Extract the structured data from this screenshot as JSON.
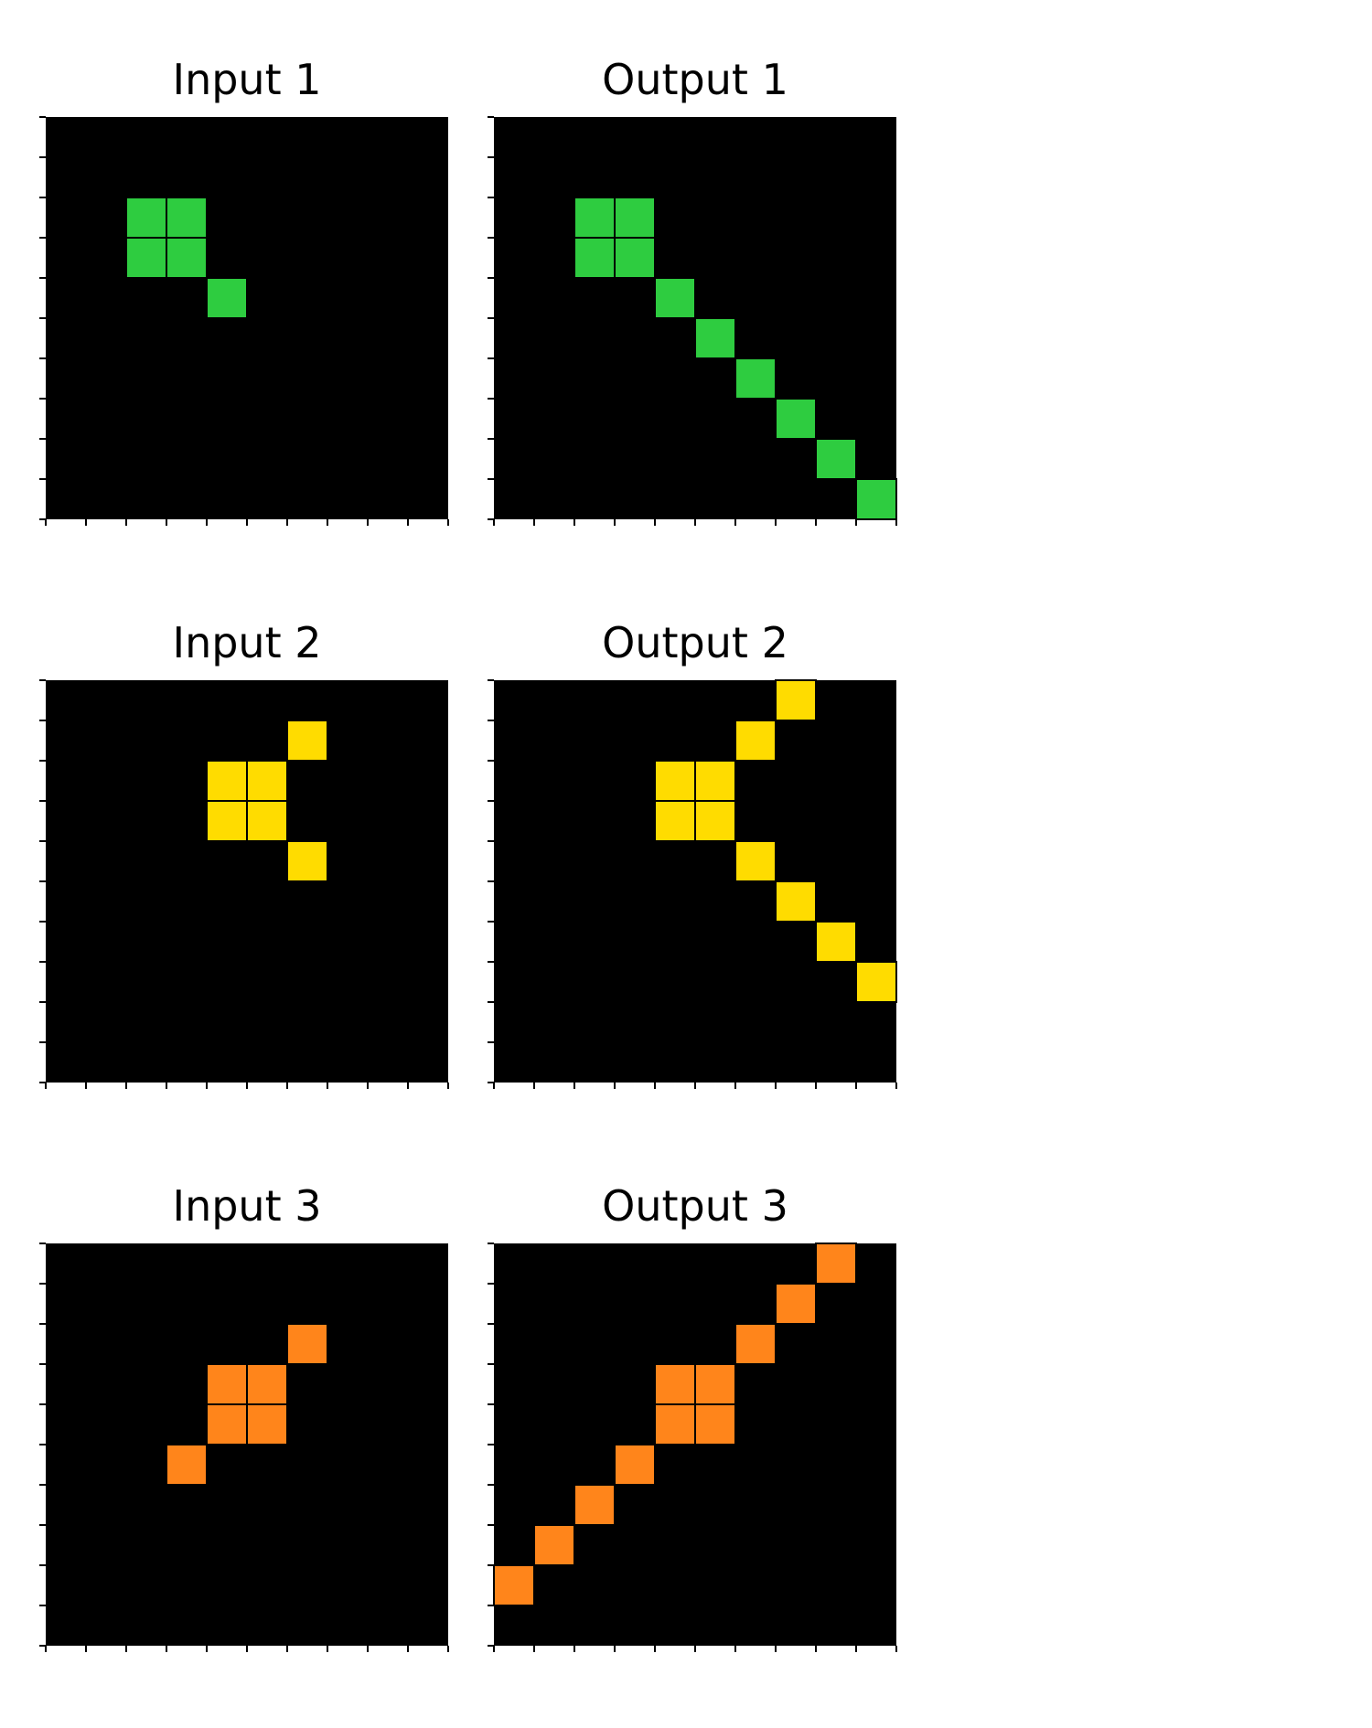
{
  "colors": {
    "background": "#000000",
    "green": "#2ECC40",
    "yellow": "#FFDC00",
    "orange": "#FF851B",
    "cell_border": "#000000"
  },
  "grid_size": 10,
  "pairs": [
    {
      "input": {
        "title": "Input 1",
        "color": "green",
        "cells": [
          [
            2,
            2
          ],
          [
            2,
            3
          ],
          [
            3,
            2
          ],
          [
            3,
            3
          ],
          [
            4,
            4
          ]
        ]
      },
      "output": {
        "title": "Output 1",
        "color": "green",
        "cells": [
          [
            2,
            2
          ],
          [
            2,
            3
          ],
          [
            3,
            2
          ],
          [
            3,
            3
          ],
          [
            4,
            4
          ],
          [
            5,
            5
          ],
          [
            6,
            6
          ],
          [
            7,
            7
          ],
          [
            8,
            8
          ],
          [
            9,
            9
          ]
        ]
      }
    },
    {
      "input": {
        "title": "Input 2",
        "color": "yellow",
        "cells": [
          [
            1,
            6
          ],
          [
            2,
            4
          ],
          [
            2,
            5
          ],
          [
            3,
            4
          ],
          [
            3,
            5
          ],
          [
            4,
            6
          ]
        ]
      },
      "output": {
        "title": "Output 2",
        "color": "yellow",
        "cells": [
          [
            0,
            7
          ],
          [
            1,
            6
          ],
          [
            2,
            4
          ],
          [
            2,
            5
          ],
          [
            3,
            4
          ],
          [
            3,
            5
          ],
          [
            4,
            6
          ],
          [
            5,
            7
          ],
          [
            6,
            8
          ],
          [
            7,
            9
          ]
        ]
      }
    },
    {
      "input": {
        "title": "Input 3",
        "color": "orange",
        "cells": [
          [
            2,
            6
          ],
          [
            3,
            4
          ],
          [
            3,
            5
          ],
          [
            4,
            4
          ],
          [
            4,
            5
          ],
          [
            5,
            3
          ]
        ]
      },
      "output": {
        "title": "Output 3",
        "color": "orange",
        "cells": [
          [
            0,
            8
          ],
          [
            1,
            7
          ],
          [
            2,
            6
          ],
          [
            3,
            4
          ],
          [
            3,
            5
          ],
          [
            4,
            4
          ],
          [
            4,
            5
          ],
          [
            5,
            3
          ],
          [
            6,
            2
          ],
          [
            7,
            1
          ],
          [
            8,
            0
          ]
        ]
      }
    }
  ]
}
